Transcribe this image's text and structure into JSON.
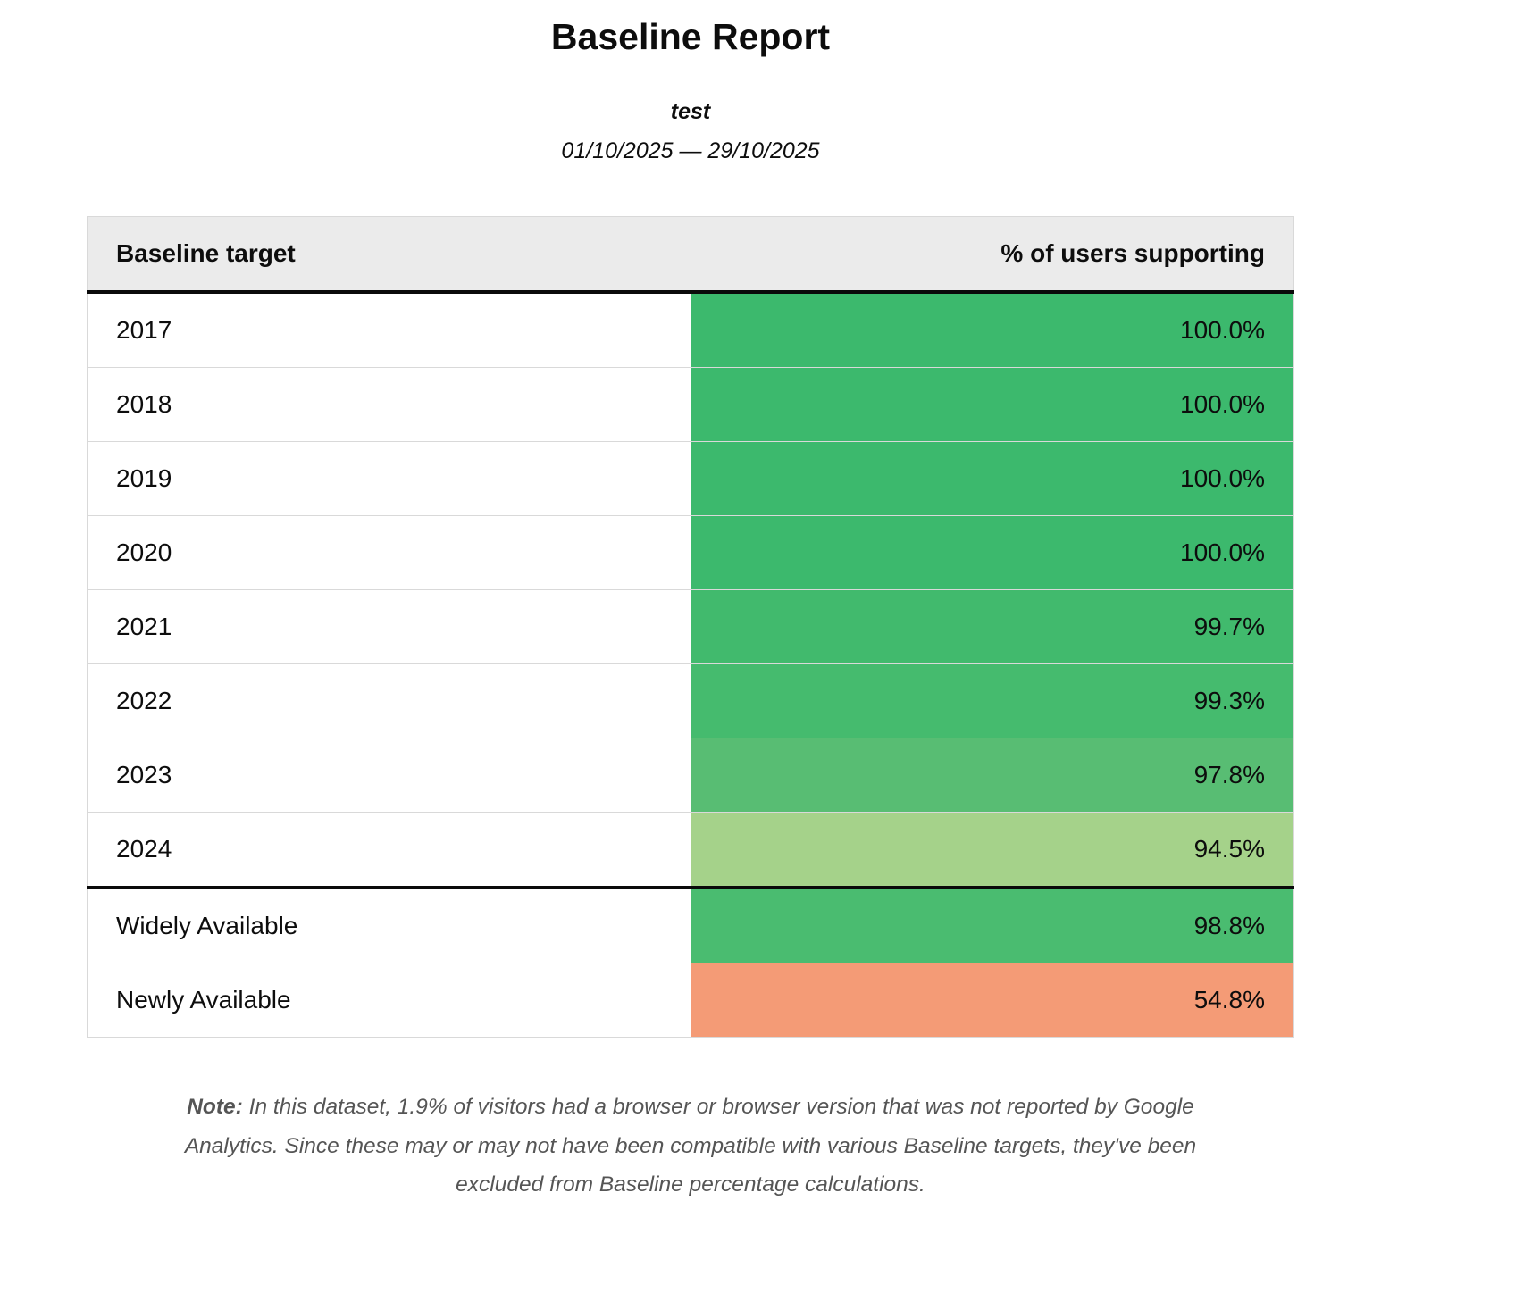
{
  "report": {
    "title": "Baseline Report",
    "subtitle": "test",
    "date_range": "01/10/2025 — 29/10/2025"
  },
  "table": {
    "columns": {
      "target": "Baseline target",
      "percent": "% of users supporting"
    },
    "year_rows": [
      {
        "target": "2017",
        "percent": "100.0%",
        "color": "#3cb96d"
      },
      {
        "target": "2018",
        "percent": "100.0%",
        "color": "#3cb96d"
      },
      {
        "target": "2019",
        "percent": "100.0%",
        "color": "#3cb96d"
      },
      {
        "target": "2020",
        "percent": "100.0%",
        "color": "#3cb96d"
      },
      {
        "target": "2021",
        "percent": "99.7%",
        "color": "#41ba6d"
      },
      {
        "target": "2022",
        "percent": "99.3%",
        "color": "#45bb6e"
      },
      {
        "target": "2023",
        "percent": "97.8%",
        "color": "#58bd73"
      },
      {
        "target": "2024",
        "percent": "94.5%",
        "color": "#a5d28a"
      }
    ],
    "baseline_rows": [
      {
        "target": "Widely Available",
        "percent": "98.8%",
        "color": "#4abc70"
      },
      {
        "target": "Newly Available",
        "percent": "54.8%",
        "color": "#f49b76"
      }
    ]
  },
  "note": {
    "label": "Note:",
    "text": "In this dataset, 1.9% of visitors had a browser or browser version that was not reported by Google Analytics. Since these may or may not have been compatible with various Baseline targets, they've been excluded from Baseline percentage calculations."
  },
  "chart_data": {
    "type": "table",
    "title": "Baseline Report",
    "subtitle": "test",
    "date_range": "01/10/2025 — 29/10/2025",
    "columns": [
      "Baseline target",
      "% of users supporting"
    ],
    "categories": [
      "2017",
      "2018",
      "2019",
      "2020",
      "2021",
      "2022",
      "2023",
      "2024",
      "Widely Available",
      "Newly Available"
    ],
    "values": [
      100.0,
      100.0,
      100.0,
      100.0,
      99.7,
      99.3,
      97.8,
      94.5,
      98.8,
      54.8
    ],
    "value_unit": "%",
    "color_encoding": "cell background from red (low) to green (high) support",
    "section_break_after": "2024",
    "footnote": "Note: In this dataset, 1.9% of visitors had a browser or browser version that was not reported by Google Analytics. Since these may or may not have been compatible with various Baseline targets, they've been excluded from Baseline percentage calculations."
  }
}
